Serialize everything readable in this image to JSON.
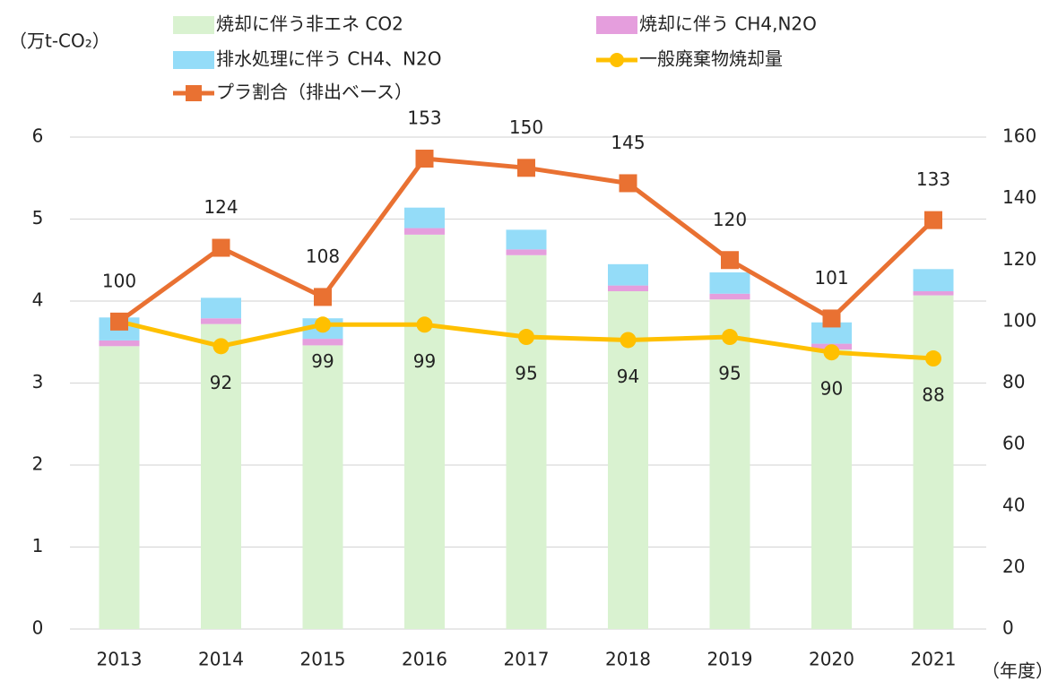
{
  "chart_data": {
    "type": "bar_line_combo",
    "y_label": "（万t-CO₂）",
    "x_label": "（年度）",
    "categories": [
      "2013",
      "2014",
      "2015",
      "2016",
      "2017",
      "2018",
      "2019",
      "2020",
      "2021"
    ],
    "ylim": [
      0,
      6
    ],
    "yticks": [
      0,
      1,
      2,
      3,
      4,
      5,
      6
    ],
    "y2lim": [
      0,
      160
    ],
    "y2ticks": [
      0,
      20,
      40,
      60,
      80,
      100,
      120,
      140,
      160
    ],
    "grid": true,
    "series": [
      {
        "name": "焼却に伴う非エネ CO2",
        "kind": "bar",
        "color": "#d9f2d0",
        "values": [
          3.45,
          3.72,
          3.46,
          4.81,
          4.56,
          4.12,
          4.02,
          3.41,
          4.07
        ]
      },
      {
        "name": "焼却に伴う CH4,N2O",
        "kind": "bar",
        "color": "#e59edd",
        "values": [
          0.07,
          0.07,
          0.08,
          0.08,
          0.07,
          0.07,
          0.07,
          0.07,
          0.05
        ]
      },
      {
        "name": "排水処理に伴う CH4、N2O",
        "kind": "bar",
        "color": "#94dcf8",
        "values": [
          0.28,
          0.25,
          0.25,
          0.25,
          0.24,
          0.26,
          0.26,
          0.26,
          0.27
        ]
      },
      {
        "name": "一般廃棄物焼却量",
        "kind": "line",
        "axis": "y2",
        "color": "#ffc000",
        "marker": "circle",
        "label_side": "below",
        "values": [
          100,
          92,
          99,
          99,
          95,
          94,
          95,
          90,
          88
        ],
        "value_labels": [
          null,
          "92",
          "99",
          "99",
          "95",
          "94",
          "95",
          "90",
          "88"
        ]
      },
      {
        "name": "プラ割合（排出ベース）",
        "kind": "line",
        "axis": "y2",
        "color": "#e97132",
        "marker": "square",
        "label_side": "above",
        "values": [
          100,
          124,
          108,
          153,
          150,
          145,
          120,
          101,
          133
        ]
      }
    ]
  }
}
